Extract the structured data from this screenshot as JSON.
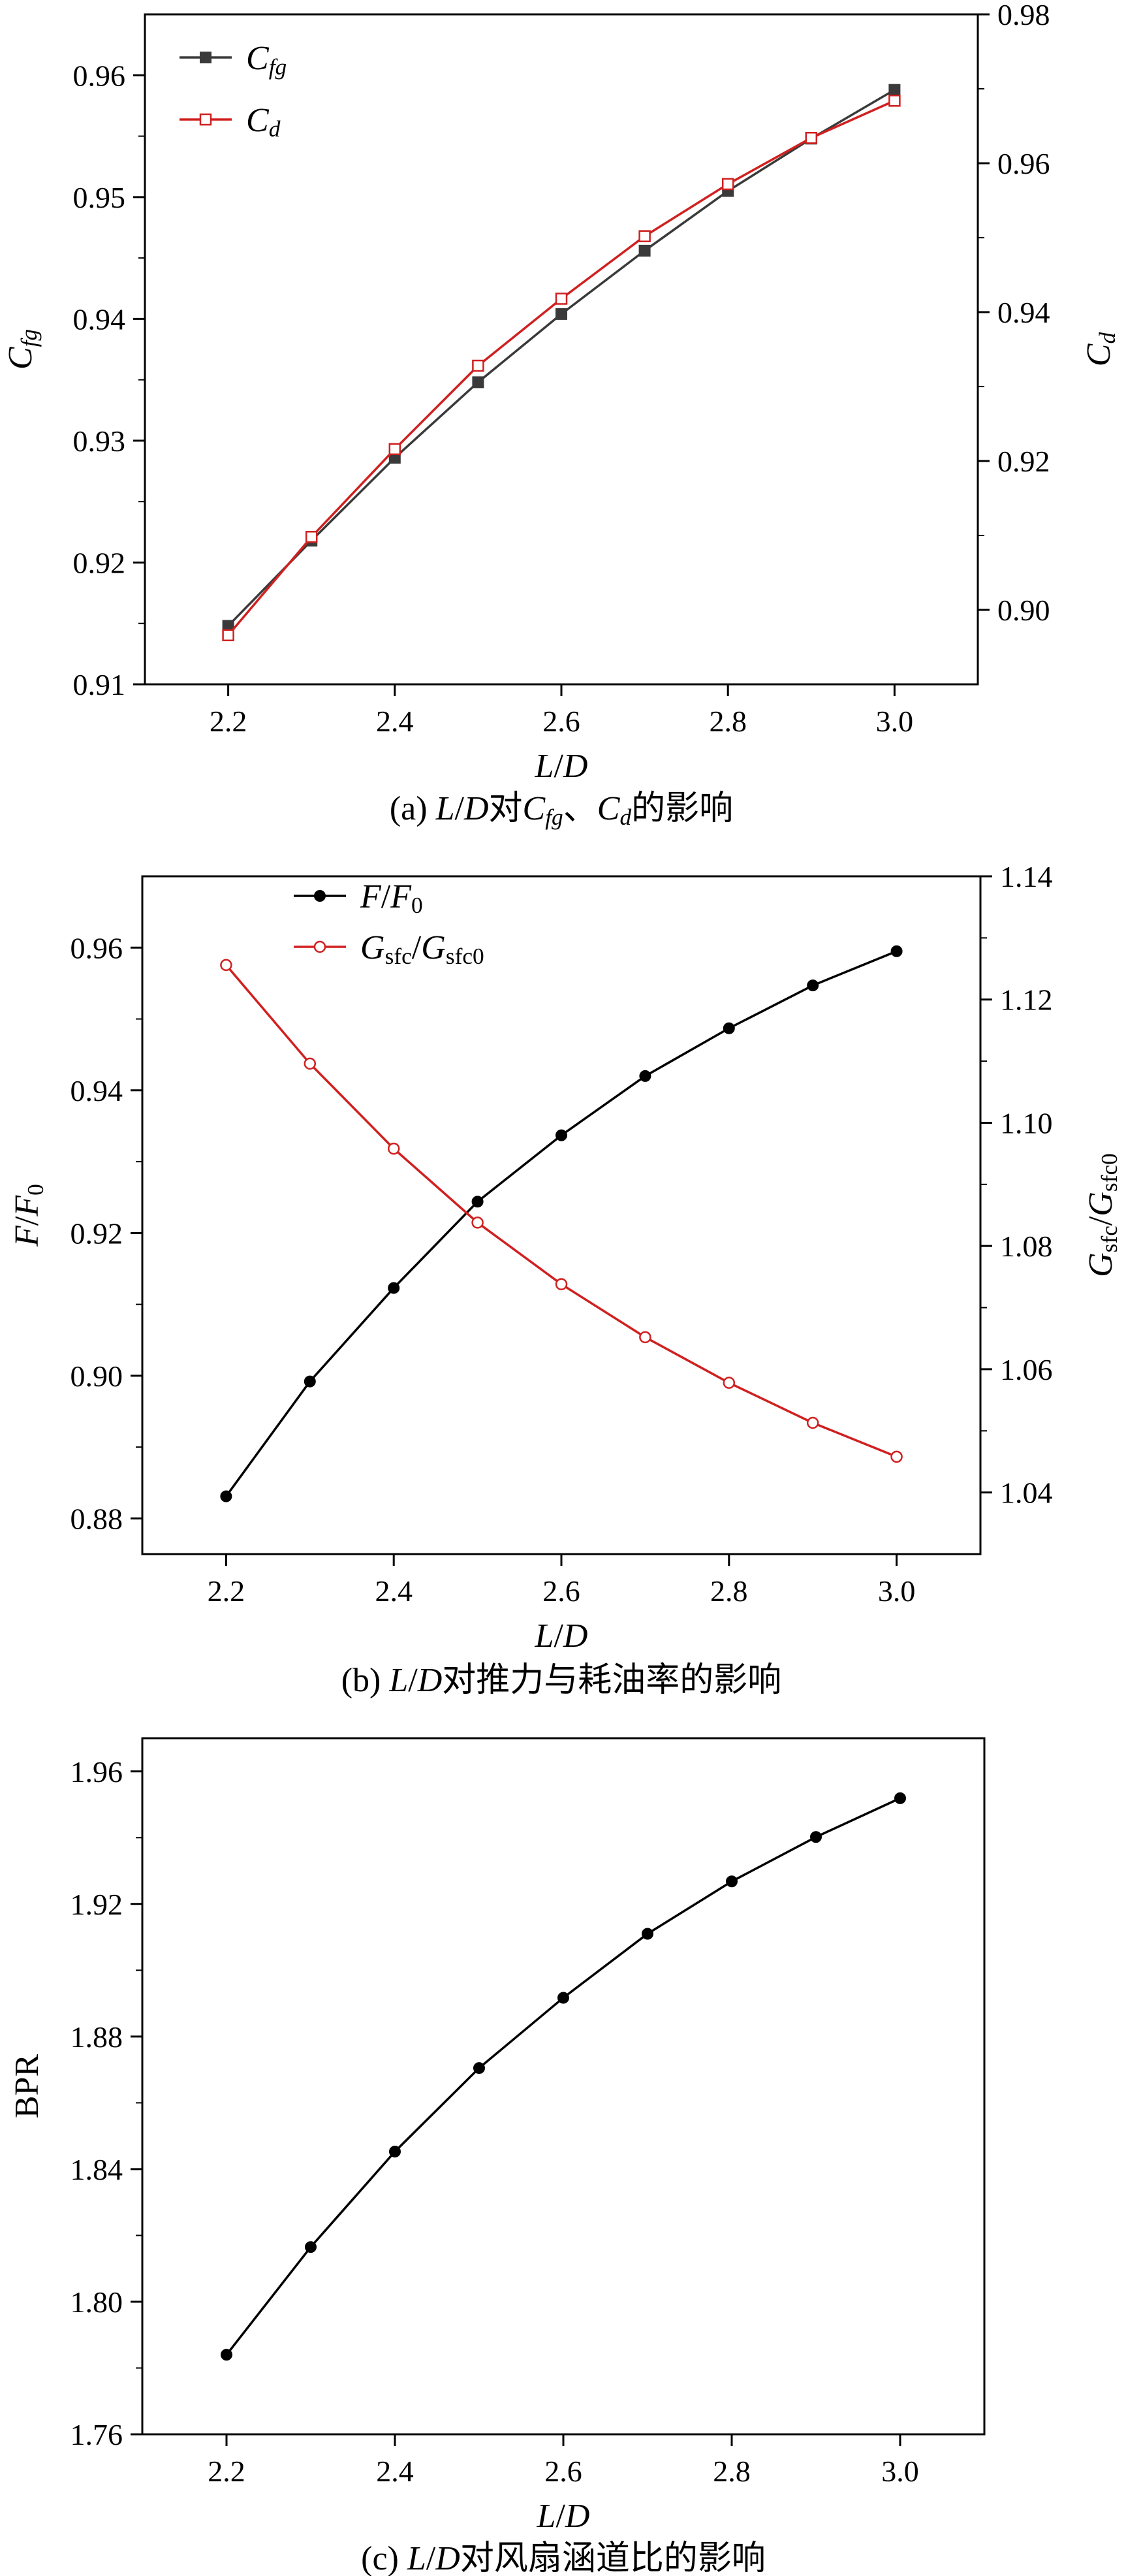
{
  "chart_data": [
    {
      "type": "line",
      "caption_parts": [
        "(a) ",
        "L",
        "/",
        "D",
        "对",
        "C",
        "fg",
        "、",
        "C",
        "d",
        "的影响"
      ],
      "xlabel_parts": [
        "L",
        "/",
        "D"
      ],
      "ylabel_left_parts": [
        "C",
        "fg"
      ],
      "ylabel_right_parts": [
        "C",
        "d"
      ],
      "xlim": [
        2.1,
        3.1
      ],
      "ylim_left": [
        0.91,
        0.965
      ],
      "ylim_right": [
        0.89,
        0.98
      ],
      "x_ticks": [
        "2.2",
        "2.4",
        "2.6",
        "2.8",
        "3.0"
      ],
      "y_ticks_left": [
        "0.91",
        "0.92",
        "0.93",
        "0.94",
        "0.95",
        "0.96"
      ],
      "y_ticks_right": [
        "0.90",
        "0.92",
        "0.94",
        "0.96",
        "0.98"
      ],
      "legend_position": "top-left",
      "x": [
        2.2,
        2.3,
        2.4,
        2.5,
        2.6,
        2.7,
        2.8,
        2.9,
        3.0
      ],
      "series": [
        {
          "name_parts": [
            "C",
            "fg"
          ],
          "axis": "left",
          "color": "#3a3a3a",
          "marker": "filled-square",
          "values": [
            0.9148,
            0.9218,
            0.9286,
            0.9348,
            0.9404,
            0.9456,
            0.9505,
            0.9548,
            0.9588
          ]
        },
        {
          "name_parts": [
            "C",
            "d"
          ],
          "axis": "right",
          "color": "#d02020",
          "marker": "open-square",
          "values": [
            0.8966,
            0.9098,
            0.9216,
            0.9328,
            0.9418,
            0.9502,
            0.9572,
            0.9634,
            0.9684
          ]
        }
      ]
    },
    {
      "type": "line",
      "caption_parts": [
        "(b) ",
        "L",
        "/",
        "D",
        "对推力与耗油率的影响"
      ],
      "xlabel_parts": [
        "L",
        "/",
        "D"
      ],
      "ylabel_left_parts": [
        "F",
        "/",
        "F",
        "0"
      ],
      "ylabel_right_parts": [
        "G",
        "sfc",
        "/",
        "G",
        "sfc0"
      ],
      "xlim": [
        2.1,
        3.1
      ],
      "ylim_left": [
        0.875,
        0.97
      ],
      "ylim_right": [
        1.03,
        1.14
      ],
      "x_ticks": [
        "2.2",
        "2.4",
        "2.6",
        "2.8",
        "3.0"
      ],
      "y_ticks_left": [
        "0.88",
        "0.90",
        "0.92",
        "0.94",
        "0.96"
      ],
      "y_ticks_right": [
        "1.04",
        "1.06",
        "1.08",
        "1.10",
        "1.12",
        "1.14"
      ],
      "legend_position": "top-center",
      "x": [
        2.2,
        2.3,
        2.4,
        2.5,
        2.6,
        2.7,
        2.8,
        2.9,
        3.0
      ],
      "series": [
        {
          "name_parts": [
            "F",
            "/",
            "F",
            "0"
          ],
          "axis": "left",
          "color": "#000000",
          "marker": "filled-circle",
          "values": [
            0.8831,
            0.8992,
            0.9123,
            0.9244,
            0.9337,
            0.942,
            0.9487,
            0.9547,
            0.9595
          ]
        },
        {
          "name_parts": [
            "G",
            "sfc",
            "/",
            "G",
            "sfc0"
          ],
          "axis": "right",
          "color": "#d02020",
          "marker": "open-circle",
          "values": [
            1.1256,
            1.1096,
            1.0958,
            1.0838,
            1.0738,
            1.0652,
            1.0578,
            1.0513,
            1.0458
          ]
        }
      ]
    },
    {
      "type": "line",
      "caption_parts": [
        "(c) ",
        "L",
        "/",
        "D",
        "对风扇涵道比的影响"
      ],
      "xlabel_parts": [
        "L",
        "/",
        "D"
      ],
      "ylabel_left_parts": [
        "BPR"
      ],
      "xlim": [
        2.1,
        3.1
      ],
      "ylim_left": [
        1.76,
        1.97
      ],
      "x_ticks": [
        "2.2",
        "2.4",
        "2.6",
        "2.8",
        "3.0"
      ],
      "y_ticks_left": [
        "1.76",
        "1.80",
        "1.84",
        "1.88",
        "1.92",
        "1.96"
      ],
      "x": [
        2.2,
        2.3,
        2.4,
        2.5,
        2.6,
        2.7,
        2.8,
        2.9,
        3.0
      ],
      "series": [
        {
          "axis": "left",
          "color": "#000000",
          "marker": "filled-circle",
          "values": [
            1.784,
            1.8165,
            1.8453,
            1.8705,
            1.8917,
            1.911,
            1.9268,
            1.9402,
            1.9519
          ]
        }
      ]
    }
  ]
}
